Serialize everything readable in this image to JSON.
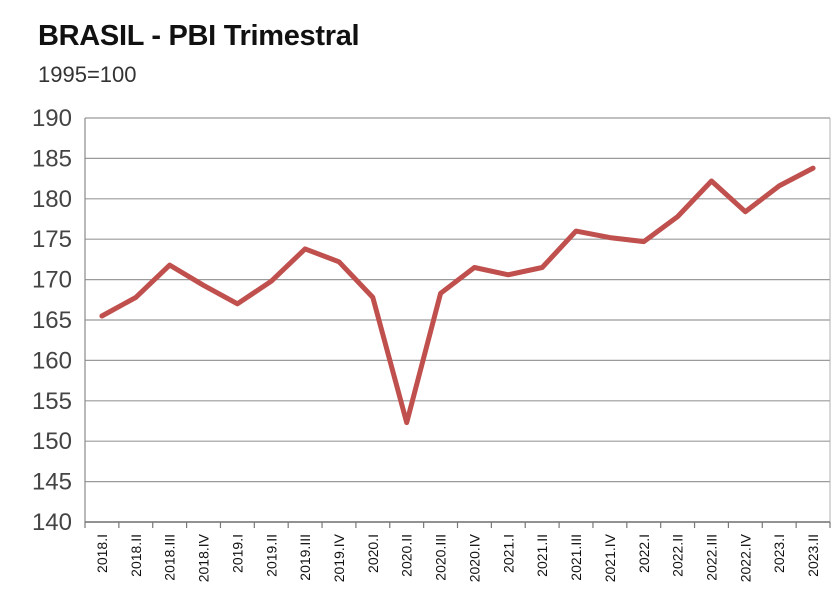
{
  "chart_data": {
    "type": "line",
    "title": "BRASIL - PBI Trimestral",
    "subtitle": "1995=100",
    "xlabel": "",
    "ylabel": "",
    "ylim": [
      140,
      190
    ],
    "yticks": [
      190,
      185,
      180,
      175,
      170,
      165,
      160,
      155,
      150,
      145,
      140
    ],
    "grid": true,
    "legend": "none",
    "categories": [
      "2018.I",
      "2018.II",
      "2018.III",
      "2018.IV",
      "2019.I",
      "2019.II",
      "2019.III",
      "2019.IV",
      "2020.I",
      "2020.II",
      "2020.III",
      "2020.IV",
      "2021.I",
      "2021.II",
      "2021.III",
      "2021.IV",
      "2022.I",
      "2022.II",
      "2022.III",
      "2022.IV",
      "2023.I",
      "2023.II"
    ],
    "series": [
      {
        "color": "#c0504d",
        "values": [
          165.5,
          167.8,
          171.8,
          169.3,
          167.0,
          169.8,
          173.8,
          172.2,
          167.8,
          152.3,
          168.3,
          171.5,
          170.6,
          171.5,
          176.0,
          175.2,
          174.7,
          177.8,
          182.2,
          178.4,
          181.6,
          183.8
        ]
      }
    ]
  }
}
